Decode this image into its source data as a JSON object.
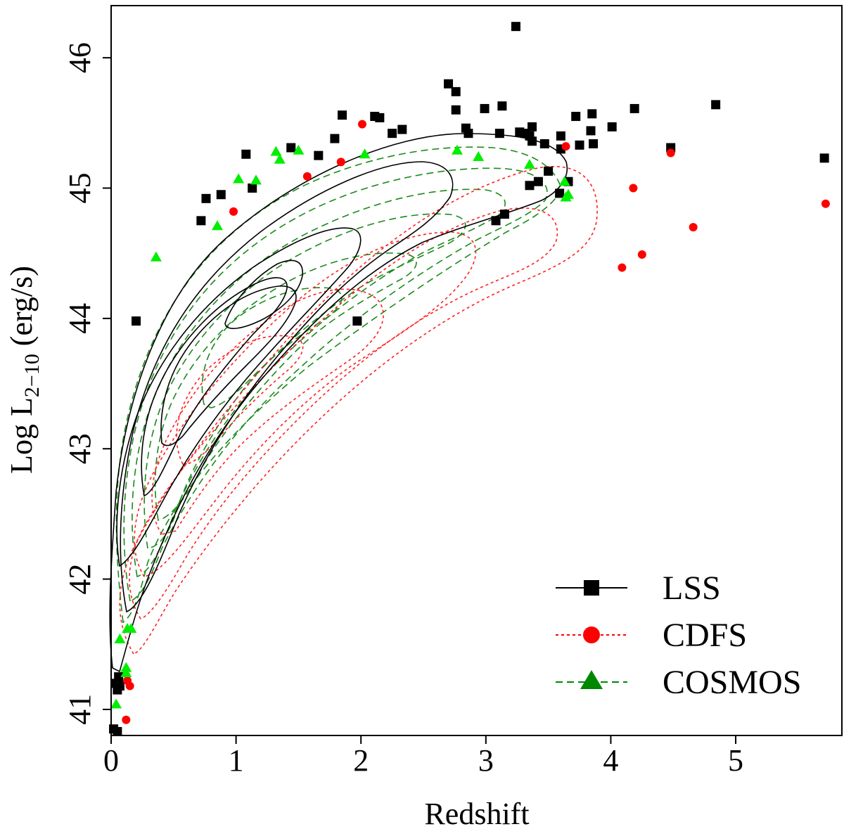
{
  "chart_data": {
    "type": "scatter",
    "title": "",
    "xlabel": "Redshift",
    "ylabel_main": "Log L",
    "ylabel_sub": "2−10",
    "ylabel_unit": " (erg/s)",
    "xlim": [
      0,
      5.85
    ],
    "ylim": [
      40.8,
      46.4
    ],
    "xticks": [
      0,
      1,
      2,
      3,
      4,
      5
    ],
    "yticks": [
      41,
      42,
      43,
      44,
      45,
      46
    ],
    "grid": false,
    "legend_position": "bottom-right",
    "colors": {
      "LSS": "#000000",
      "CDFS": "#ff0000",
      "COSMOS": "#00ee00",
      "COSMOS_line": "#008800"
    },
    "series": [
      {
        "name": "LSS",
        "marker": "square",
        "line": "solid",
        "points": [
          [
            0.02,
            40.85
          ],
          [
            0.04,
            41.2
          ],
          [
            0.05,
            41.15
          ],
          [
            0.06,
            41.25
          ],
          [
            0.07,
            41.18
          ],
          [
            0.05,
            40.83
          ],
          [
            0.2,
            43.98
          ],
          [
            0.72,
            44.75
          ],
          [
            0.76,
            44.92
          ],
          [
            0.88,
            44.95
          ],
          [
            1.08,
            45.26
          ],
          [
            1.13,
            45.0
          ],
          [
            1.44,
            45.31
          ],
          [
            1.66,
            45.25
          ],
          [
            1.79,
            45.38
          ],
          [
            1.85,
            45.56
          ],
          [
            1.97,
            43.98
          ],
          [
            2.11,
            45.55
          ],
          [
            2.15,
            45.54
          ],
          [
            2.25,
            45.42
          ],
          [
            2.33,
            45.45
          ],
          [
            2.7,
            45.8
          ],
          [
            2.76,
            45.74
          ],
          [
            2.76,
            45.6
          ],
          [
            2.84,
            45.46
          ],
          [
            2.86,
            45.42
          ],
          [
            2.99,
            45.61
          ],
          [
            3.08,
            44.75
          ],
          [
            3.11,
            45.42
          ],
          [
            3.13,
            45.63
          ],
          [
            3.15,
            44.8
          ],
          [
            3.24,
            46.24
          ],
          [
            3.27,
            45.43
          ],
          [
            3.31,
            45.42
          ],
          [
            3.35,
            45.02
          ],
          [
            3.35,
            45.4
          ],
          [
            3.37,
            45.36
          ],
          [
            3.37,
            45.47
          ],
          [
            3.42,
            45.05
          ],
          [
            3.47,
            45.34
          ],
          [
            3.5,
            45.13
          ],
          [
            3.59,
            44.96
          ],
          [
            3.6,
            45.4
          ],
          [
            3.6,
            45.3
          ],
          [
            3.66,
            45.05
          ],
          [
            3.72,
            45.55
          ],
          [
            3.75,
            45.33
          ],
          [
            3.84,
            45.44
          ],
          [
            3.85,
            45.57
          ],
          [
            3.86,
            45.34
          ],
          [
            4.01,
            45.47
          ],
          [
            4.19,
            45.61
          ],
          [
            4.48,
            45.31
          ],
          [
            4.84,
            45.64
          ],
          [
            5.71,
            45.23
          ]
        ]
      },
      {
        "name": "CDFS",
        "marker": "circle",
        "line": "dotted",
        "points": [
          [
            0.12,
            40.92
          ],
          [
            0.13,
            41.22
          ],
          [
            0.15,
            41.18
          ],
          [
            0.98,
            44.82
          ],
          [
            1.57,
            45.09
          ],
          [
            1.84,
            45.2
          ],
          [
            2.01,
            45.49
          ],
          [
            3.64,
            45.32
          ],
          [
            4.09,
            44.39
          ],
          [
            4.18,
            45.0
          ],
          [
            4.25,
            44.49
          ],
          [
            4.48,
            45.27
          ],
          [
            4.66,
            44.7
          ],
          [
            5.72,
            44.88
          ]
        ]
      },
      {
        "name": "COSMOS",
        "marker": "triangle",
        "line": "dashed",
        "points": [
          [
            0.04,
            41.04
          ],
          [
            0.07,
            41.54
          ],
          [
            0.12,
            41.32
          ],
          [
            0.12,
            41.28
          ],
          [
            0.13,
            41.62
          ],
          [
            0.16,
            41.62
          ],
          [
            0.36,
            44.47
          ],
          [
            0.85,
            44.71
          ],
          [
            1.02,
            45.07
          ],
          [
            1.16,
            45.06
          ],
          [
            1.32,
            45.28
          ],
          [
            1.35,
            45.22
          ],
          [
            1.5,
            45.29
          ],
          [
            2.03,
            45.26
          ],
          [
            2.77,
            45.29
          ],
          [
            2.94,
            45.24
          ],
          [
            3.35,
            45.18
          ],
          [
            3.63,
            45.05
          ],
          [
            3.64,
            44.93
          ],
          [
            3.66,
            44.95
          ]
        ]
      }
    ]
  }
}
